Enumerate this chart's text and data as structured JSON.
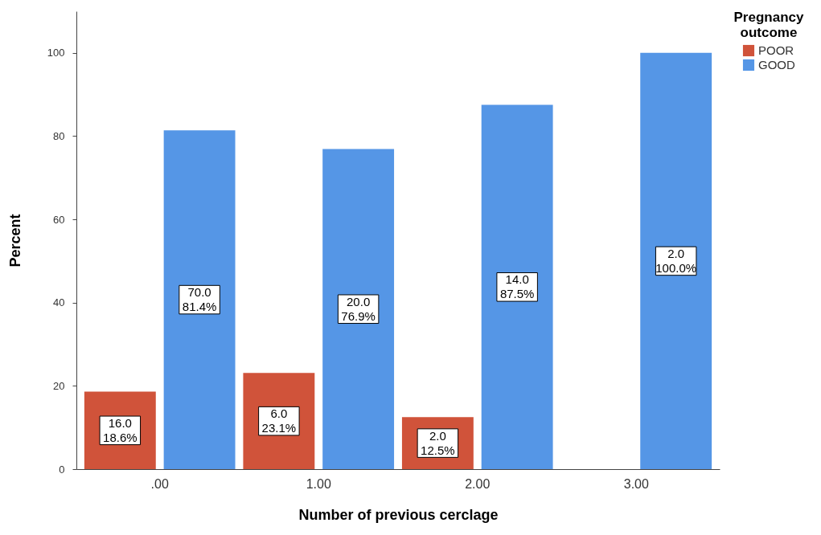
{
  "chart_data": {
    "type": "bar",
    "xlabel": "Number of previous cerclage",
    "ylabel": "Percent",
    "legend_title": "Pregnancy outcome",
    "legend": "top right",
    "categories": [
      ".00",
      "1.00",
      "2.00",
      "3.00"
    ],
    "series": [
      {
        "name": "POOR",
        "color": "#d0533a",
        "values": [
          18.6,
          23.1,
          12.5,
          null
        ],
        "value_labels": [
          "16.0\n18.6%",
          "6.0\n23.1%",
          "2.0\n12.5%",
          null
        ]
      },
      {
        "name": "GOOD",
        "color": "#5596e6",
        "values": [
          81.4,
          76.9,
          87.5,
          100.0
        ],
        "value_labels": [
          "70.0\n81.4%",
          "20.0\n76.9%",
          "14.0\n87.5%",
          "2.0\n100.0%"
        ]
      }
    ],
    "ylim": [
      0,
      110
    ],
    "yticks": [
      0,
      20,
      40,
      60,
      80,
      100
    ],
    "grid": false
  }
}
